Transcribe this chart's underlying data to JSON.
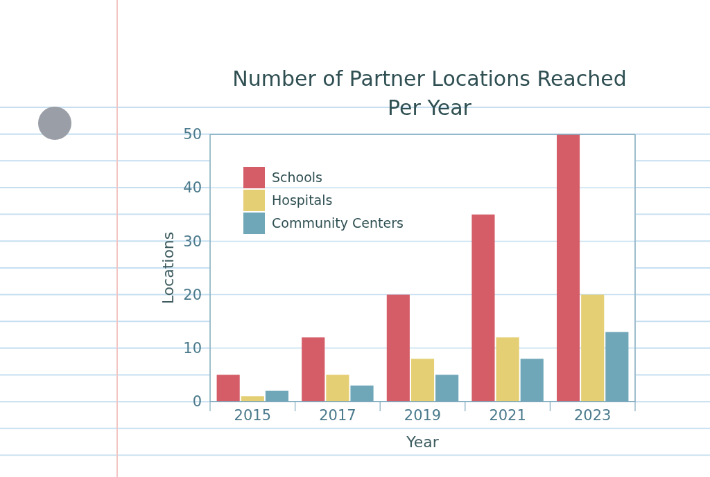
{
  "chart_data": {
    "type": "bar",
    "title": "Number of Partner Locations Reached Per Year",
    "xlabel": "Year",
    "ylabel": "Locations",
    "categories": [
      "2015",
      "2017",
      "2019",
      "2021",
      "2023"
    ],
    "series": [
      {
        "name": "Schools",
        "color": "#d45d67",
        "values": [
          5,
          12,
          20,
          35,
          50
        ]
      },
      {
        "name": "Hospitals",
        "color": "#e5cf74",
        "values": [
          1,
          5,
          8,
          12,
          20
        ]
      },
      {
        "name": "Community Centers",
        "color": "#6fa7b8",
        "values": [
          2,
          3,
          5,
          8,
          13
        ]
      }
    ],
    "ylim": [
      0,
      50
    ],
    "yticks": [
      0,
      10,
      20,
      30,
      40,
      50
    ],
    "grid": "y",
    "legend": "top left"
  }
}
